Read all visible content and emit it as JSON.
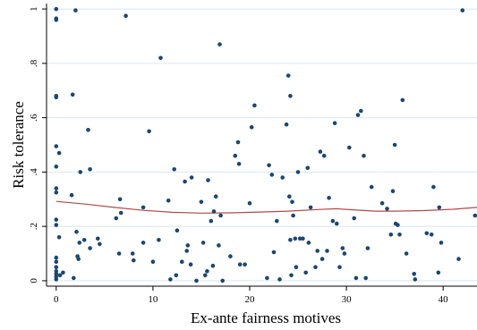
{
  "chart_data": {
    "type": "scatter",
    "title": "",
    "xlabel": "Ex-ante fairness motives",
    "ylabel": "Risk tolerance",
    "xlim": [
      -1,
      43.5
    ],
    "ylim": [
      -0.02,
      1.02
    ],
    "xticks": [
      0,
      10,
      20,
      30,
      40
    ],
    "xtick_labels": [
      "0",
      "10",
      "20",
      "30",
      "40"
    ],
    "yticks": [
      0,
      0.2,
      0.4,
      0.6,
      0.8,
      1
    ],
    "ytick_labels": [
      "0",
      ".2",
      ".4",
      ".6",
      ".8",
      "1"
    ],
    "grid": "horizontal",
    "point_color": "#1a476f",
    "fit_line_color": "#b04a4a",
    "grid_color": "#d9e6f0",
    "series": [
      {
        "type": "scatter",
        "points": [
          [
            0.0,
            1.0
          ],
          [
            0.0,
            0.965
          ],
          [
            0.0,
            0.96
          ],
          [
            0.0,
            0.68
          ],
          [
            0.0,
            0.675
          ],
          [
            0.0,
            0.495
          ],
          [
            0.0,
            0.42
          ],
          [
            0.0,
            0.34
          ],
          [
            0.0,
            0.325
          ],
          [
            0.0,
            0.225
          ],
          [
            0.0,
            0.205
          ],
          [
            0.0,
            0.085
          ],
          [
            0.0,
            0.07
          ],
          [
            0.0,
            0.05
          ],
          [
            0.0,
            0.035
          ],
          [
            0.0,
            0.025
          ],
          [
            0.0,
            0.015
          ],
          [
            0.0,
            0.005
          ],
          [
            0.3,
            0.47
          ],
          [
            0.3,
            0.16
          ],
          [
            0.4,
            0.02
          ],
          [
            0.7,
            0.03
          ],
          [
            1.6,
            0.315
          ],
          [
            1.7,
            0.685
          ],
          [
            1.8,
            0.01
          ],
          [
            2.0,
            0.995
          ],
          [
            2.1,
            0.18
          ],
          [
            2.2,
            0.09
          ],
          [
            2.3,
            0.08
          ],
          [
            2.4,
            0.14
          ],
          [
            2.5,
            0.4
          ],
          [
            2.9,
            0.15
          ],
          [
            3.3,
            0.555
          ],
          [
            3.5,
            0.41
          ],
          [
            3.5,
            0.12
          ],
          [
            4.3,
            0.155
          ],
          [
            4.5,
            0.135
          ],
          [
            6.2,
            0.23
          ],
          [
            6.6,
            0.3
          ],
          [
            6.7,
            0.25
          ],
          [
            6.5,
            0.1
          ],
          [
            7.2,
            0.975
          ],
          [
            7.9,
            0.1
          ],
          [
            8.0,
            0.075
          ],
          [
            9.0,
            0.27
          ],
          [
            9.0,
            0.14
          ],
          [
            9.6,
            0.55
          ],
          [
            10.0,
            0.07
          ],
          [
            10.6,
            0.15
          ],
          [
            10.8,
            0.82
          ],
          [
            11.6,
            0.295
          ],
          [
            11.8,
            0.005
          ],
          [
            12.2,
            0.41
          ],
          [
            12.4,
            0.02
          ],
          [
            12.5,
            0.185
          ],
          [
            13.0,
            0.07
          ],
          [
            13.3,
            0.365
          ],
          [
            13.5,
            0.11
          ],
          [
            13.6,
            0.13
          ],
          [
            13.9,
            0.06
          ],
          [
            14.0,
            0.38
          ],
          [
            14.5,
            0.0
          ],
          [
            15.0,
            0.29
          ],
          [
            15.2,
            0.14
          ],
          [
            15.4,
            0.02
          ],
          [
            15.6,
            0.035
          ],
          [
            15.7,
            0.37
          ],
          [
            16.0,
            0.22
          ],
          [
            16.2,
            0.055
          ],
          [
            16.3,
            0.255
          ],
          [
            16.5,
            0.31
          ],
          [
            16.8,
            0.13
          ],
          [
            16.9,
            0.87
          ],
          [
            17.0,
            0.24
          ],
          [
            17.2,
            0.0
          ],
          [
            18.0,
            0.09
          ],
          [
            18.5,
            0.46
          ],
          [
            18.8,
            0.51
          ],
          [
            18.9,
            0.43
          ],
          [
            19.0,
            0.06
          ],
          [
            19.5,
            0.06
          ],
          [
            20.0,
            0.285
          ],
          [
            20.2,
            0.565
          ],
          [
            20.5,
            0.645
          ],
          [
            21.8,
            0.01
          ],
          [
            22.0,
            0.425
          ],
          [
            22.3,
            0.39
          ],
          [
            22.5,
            0.105
          ],
          [
            22.8,
            0.22
          ],
          [
            23.1,
            0.005
          ],
          [
            23.4,
            0.38
          ],
          [
            23.8,
            0.575
          ],
          [
            24.0,
            0.755
          ],
          [
            24.1,
            0.31
          ],
          [
            24.2,
            0.68
          ],
          [
            24.2,
            0.15
          ],
          [
            24.3,
            0.02
          ],
          [
            24.4,
            0.29
          ],
          [
            24.5,
            0.24
          ],
          [
            24.7,
            0.155
          ],
          [
            24.8,
            0.05
          ],
          [
            25.0,
            0.4
          ],
          [
            25.2,
            0.155
          ],
          [
            25.5,
            0.155
          ],
          [
            25.8,
            0.03
          ],
          [
            26.0,
            0.415
          ],
          [
            26.1,
            0.14
          ],
          [
            26.3,
            0.27
          ],
          [
            26.8,
            0.05
          ],
          [
            27.0,
            0.11
          ],
          [
            27.3,
            0.475
          ],
          [
            27.5,
            0.08
          ],
          [
            27.7,
            0.46
          ],
          [
            28.0,
            0.11
          ],
          [
            28.2,
            0.305
          ],
          [
            28.6,
            0.22
          ],
          [
            28.8,
            0.58
          ],
          [
            29.0,
            0.21
          ],
          [
            29.3,
            0.05
          ],
          [
            29.6,
            0.12
          ],
          [
            29.8,
            0.1
          ],
          [
            30.3,
            0.49
          ],
          [
            30.8,
            0.23
          ],
          [
            31.0,
            0.01
          ],
          [
            31.2,
            0.61
          ],
          [
            31.5,
            0.625
          ],
          [
            31.8,
            0.46
          ],
          [
            32.0,
            0.01
          ],
          [
            32.2,
            0.12
          ],
          [
            32.6,
            0.345
          ],
          [
            33.7,
            0.285
          ],
          [
            34.2,
            0.265
          ],
          [
            34.6,
            0.17
          ],
          [
            34.8,
            0.33
          ],
          [
            35.0,
            0.5
          ],
          [
            35.1,
            0.21
          ],
          [
            35.3,
            0.205
          ],
          [
            35.5,
            0.17
          ],
          [
            35.8,
            0.665
          ],
          [
            36.2,
            0.1
          ],
          [
            37.0,
            0.025
          ],
          [
            37.1,
            0.005
          ],
          [
            38.3,
            0.175
          ],
          [
            38.8,
            0.17
          ],
          [
            39.0,
            0.345
          ],
          [
            39.5,
            0.03
          ],
          [
            39.6,
            0.27
          ],
          [
            39.8,
            0.14
          ],
          [
            41.6,
            0.08
          ],
          [
            42.0,
            0.995
          ],
          [
            43.3,
            0.24
          ]
        ]
      },
      {
        "type": "line",
        "points": [
          [
            0,
            0.292
          ],
          [
            3,
            0.282
          ],
          [
            6,
            0.27
          ],
          [
            9,
            0.259
          ],
          [
            12,
            0.252
          ],
          [
            15,
            0.249
          ],
          [
            18,
            0.25
          ],
          [
            21,
            0.253
          ],
          [
            24,
            0.256
          ],
          [
            27,
            0.262
          ],
          [
            29,
            0.265
          ],
          [
            31,
            0.26
          ],
          [
            33,
            0.256
          ],
          [
            35,
            0.256
          ],
          [
            38,
            0.258
          ],
          [
            41,
            0.263
          ],
          [
            43.5,
            0.27
          ]
        ]
      }
    ]
  }
}
